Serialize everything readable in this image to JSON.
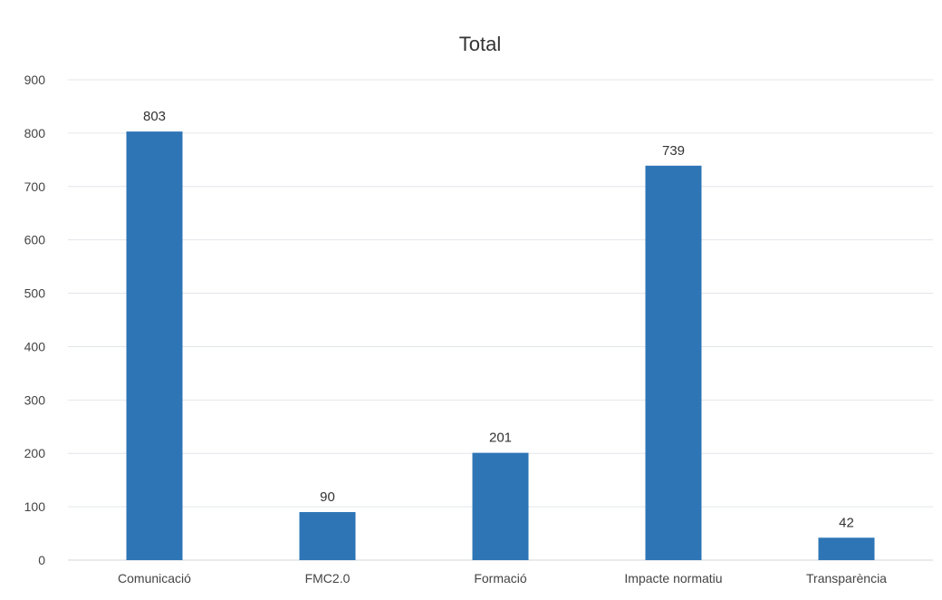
{
  "chart_data": {
    "type": "bar",
    "title": "Total",
    "xlabel": "",
    "ylabel": "",
    "categories": [
      "Comunicació",
      "FMC2.0",
      "Formació",
      "Impacte normatiu",
      "Transparència"
    ],
    "values": [
      803,
      90,
      201,
      739,
      42
    ],
    "ylim": [
      0,
      900
    ],
    "yticks": [
      0,
      100,
      200,
      300,
      400,
      500,
      600,
      700,
      800,
      900
    ],
    "grid": true,
    "legend": "none",
    "bar_color": "#2e75b6"
  }
}
